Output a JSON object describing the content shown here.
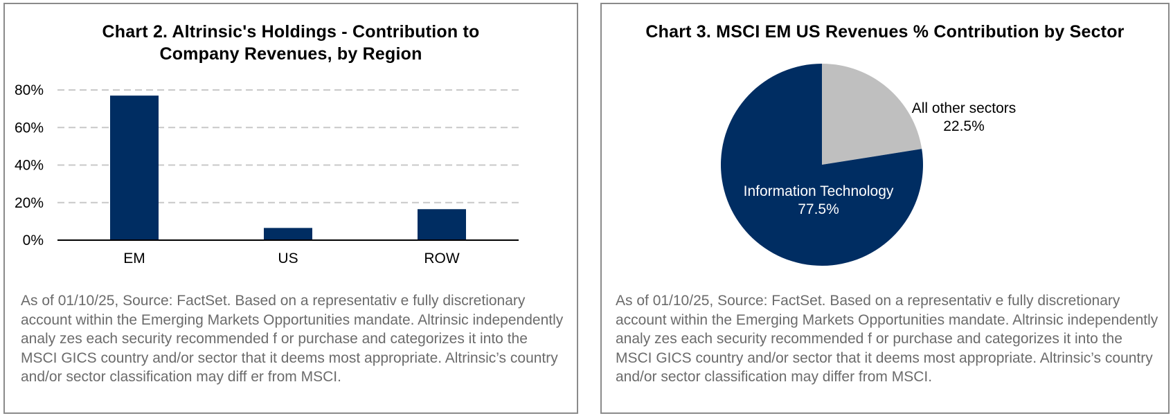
{
  "colors": {
    "navy": "#002d62",
    "grey": "#bfbfbf",
    "grid": "#c8c8c8",
    "note": "#6b6b6b"
  },
  "chart_data": [
    {
      "type": "bar",
      "title_line1": "Chart 2. Altrinsic's Holdings - Contribution to",
      "title_line2": "Company Revenues, by Region",
      "categories": [
        "EM",
        "US",
        "ROW"
      ],
      "values": [
        77,
        6.5,
        16.5
      ],
      "ylim": [
        0,
        80
      ],
      "yticks": [
        0,
        20,
        40,
        60,
        80
      ],
      "ytick_labels": [
        "0%",
        "20%",
        "40%",
        "60%",
        "80%"
      ],
      "grid": true,
      "note": "As of 01/10/25, Source: FactSet. Based on a representativ e fully discretionary account within the Emerging Markets Opportunities mandate. Altrinsic independently analy zes each security recommended f or purchase and categorizes it into the MSCI GICS country and/or sector that it deems most appropriate. Altrinsic’s country and/or sector classification may diff er from MSCI."
    },
    {
      "type": "pie",
      "title": "Chart 3. MSCI EM US Revenues % Contribution by Sector",
      "slices": [
        {
          "label": "All other sectors",
          "value": 22.5,
          "value_label": "22.5%"
        },
        {
          "label": "Information Technology",
          "value": 77.5,
          "value_label": "77.5%"
        }
      ],
      "note": "As of 01/10/25, Source: FactSet. Based on a representativ e fully discretionary account within the Emerging Markets Opportunities mandate. Altrinsic independently analy zes each security recommended f or purchase and categorizes it into the MSCI GICS country and/or sector that it deems most appropriate. Altrinsic’s country and/or sector classification may differ from MSCI."
    }
  ]
}
